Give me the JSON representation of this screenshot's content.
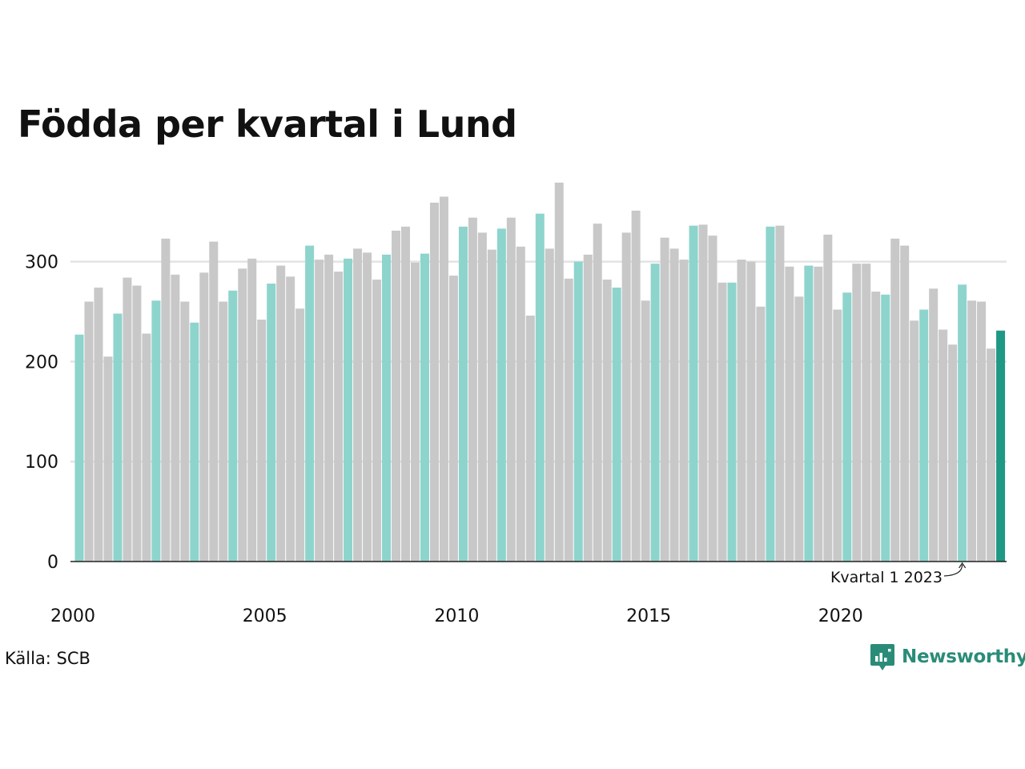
{
  "title": "Födda per kvartal i Lund",
  "source": "Källa: SCB",
  "brand": {
    "name": "Newsworthy",
    "icon": "newsworthy-logo-icon"
  },
  "colors": {
    "q1": "#8dd4cd",
    "other": "#c8c8c8",
    "latest": "#1f9885",
    "gridline": "#e3e3e3",
    "axis": "#222222",
    "brand": "#2a8c78"
  },
  "chart_data": {
    "type": "bar",
    "title": "Födda per kvartal i Lund",
    "xlabel": "",
    "ylabel": "",
    "ylim": [
      0,
      380
    ],
    "yticks": [
      0,
      100,
      200,
      300
    ],
    "xtick_labels": [
      "2000",
      "2005",
      "2010",
      "2015",
      "2020"
    ],
    "start": "2000 Q1",
    "highlight": "Kvartal 1 of each year",
    "annotation": "Kvartal 1 2023",
    "grid": "horizontal",
    "values": [
      227,
      260,
      274,
      205,
      248,
      284,
      276,
      228,
      261,
      323,
      287,
      260,
      239,
      289,
      320,
      260,
      271,
      293,
      303,
      242,
      278,
      296,
      285,
      253,
      316,
      302,
      307,
      290,
      303,
      313,
      309,
      282,
      307,
      331,
      335,
      299,
      308,
      359,
      365,
      286,
      335,
      344,
      329,
      312,
      333,
      344,
      315,
      246,
      348,
      313,
      379,
      283,
      300,
      307,
      338,
      282,
      274,
      329,
      351,
      261,
      298,
      324,
      313,
      302,
      336,
      337,
      326,
      279,
      279,
      302,
      300,
      255,
      335,
      336,
      295,
      265,
      296,
      295,
      327,
      252,
      269,
      298,
      298,
      270,
      267,
      323,
      316,
      241,
      252,
      273,
      232,
      217,
      277,
      261,
      260,
      213,
      231
    ]
  }
}
